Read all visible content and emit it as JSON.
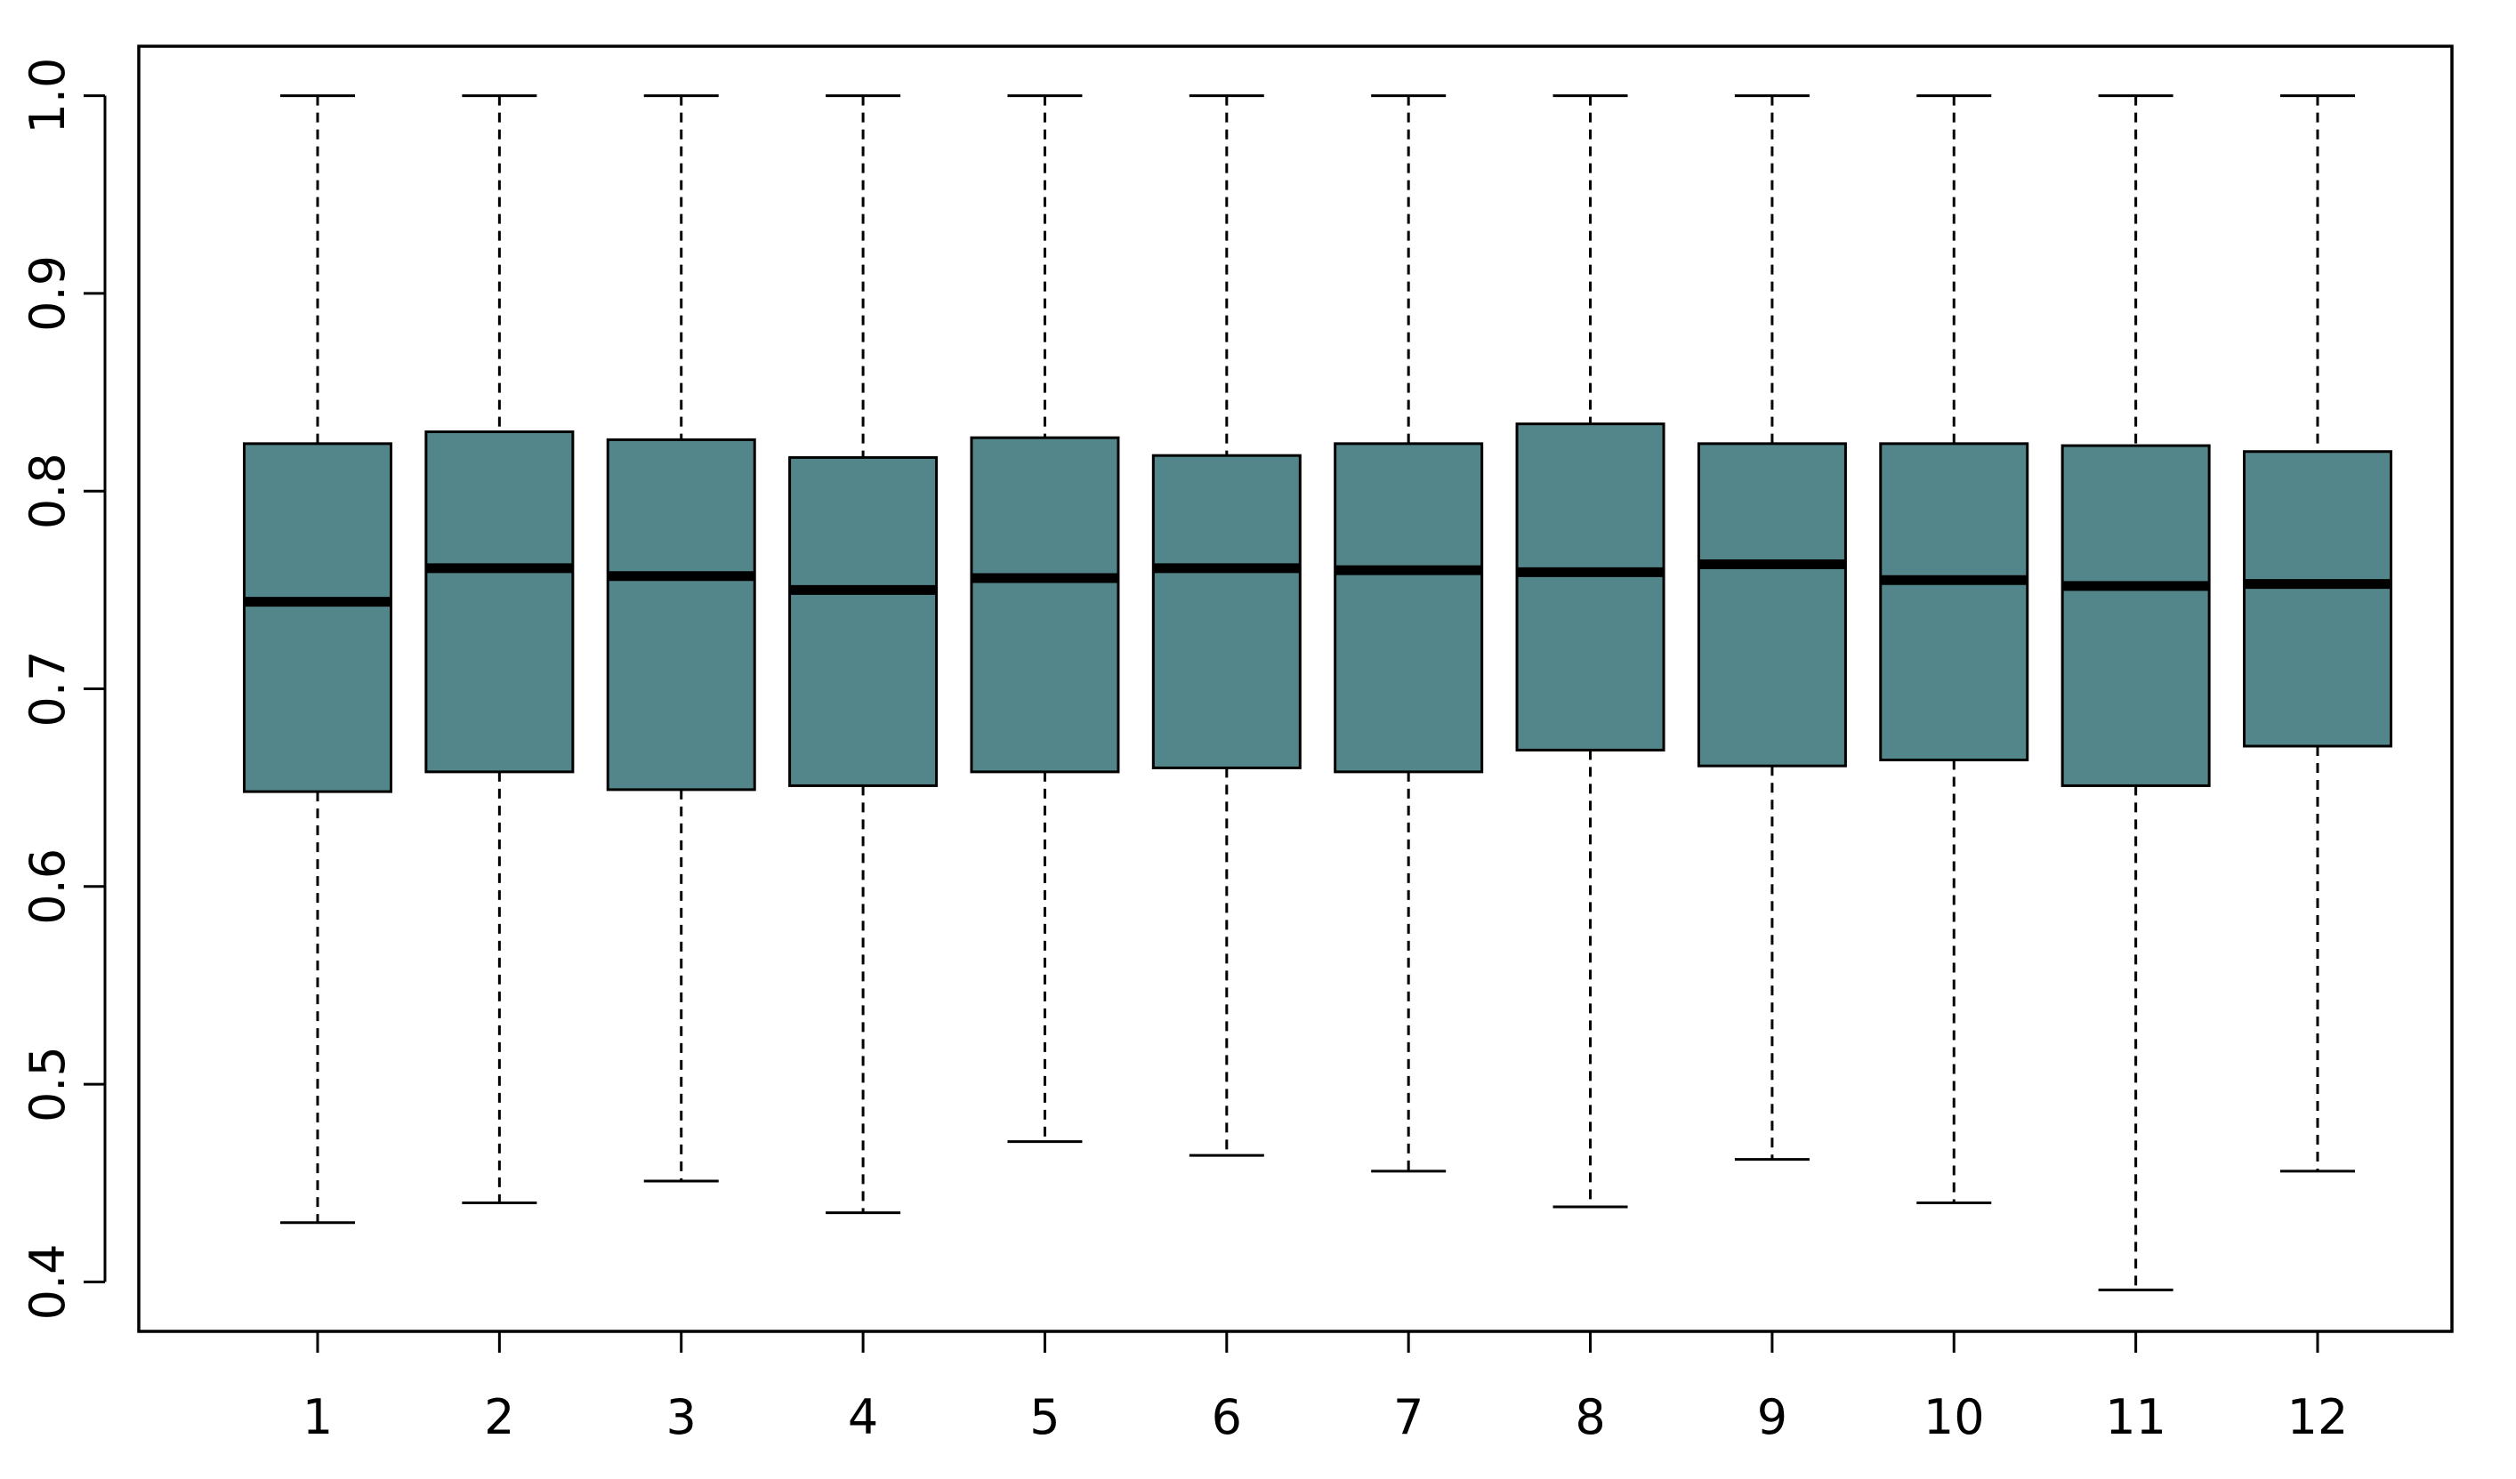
{
  "chart_data": {
    "type": "box",
    "title": "",
    "xlabel": "",
    "ylabel": "",
    "ylim": [
      0.375,
      1.025
    ],
    "y_ticks": [
      "0.4",
      "0.5",
      "0.6",
      "0.7",
      "0.8",
      "0.9",
      "1.0"
    ],
    "y_tick_values": [
      0.4,
      0.5,
      0.6,
      0.7,
      0.8,
      0.9,
      1.0
    ],
    "categories": [
      "1",
      "2",
      "3",
      "4",
      "5",
      "6",
      "7",
      "8",
      "9",
      "10",
      "11",
      "12"
    ],
    "box_color": "#53868b",
    "grid": false,
    "legend": "none",
    "boxes": [
      {
        "category": "1",
        "min": 0.43,
        "q1": 0.648,
        "median": 0.744,
        "q3": 0.824,
        "max": 1.0
      },
      {
        "category": "2",
        "min": 0.44,
        "q1": 0.658,
        "median": 0.761,
        "q3": 0.83,
        "max": 1.0
      },
      {
        "category": "3",
        "min": 0.451,
        "q1": 0.649,
        "median": 0.757,
        "q3": 0.826,
        "max": 1.0
      },
      {
        "category": "4",
        "min": 0.435,
        "q1": 0.651,
        "median": 0.75,
        "q3": 0.817,
        "max": 1.0
      },
      {
        "category": "5",
        "min": 0.471,
        "q1": 0.658,
        "median": 0.756,
        "q3": 0.827,
        "max": 1.0
      },
      {
        "category": "6",
        "min": 0.464,
        "q1": 0.66,
        "median": 0.761,
        "q3": 0.818,
        "max": 1.0
      },
      {
        "category": "7",
        "min": 0.456,
        "q1": 0.658,
        "median": 0.76,
        "q3": 0.824,
        "max": 1.0
      },
      {
        "category": "8",
        "min": 0.438,
        "q1": 0.669,
        "median": 0.759,
        "q3": 0.834,
        "max": 1.0
      },
      {
        "category": "9",
        "min": 0.462,
        "q1": 0.661,
        "median": 0.763,
        "q3": 0.824,
        "max": 1.0
      },
      {
        "category": "10",
        "min": 0.44,
        "q1": 0.664,
        "median": 0.755,
        "q3": 0.824,
        "max": 1.0
      },
      {
        "category": "11",
        "min": 0.396,
        "q1": 0.651,
        "median": 0.752,
        "q3": 0.823,
        "max": 1.0
      },
      {
        "category": "12",
        "min": 0.456,
        "q1": 0.671,
        "median": 0.753,
        "q3": 0.82,
        "max": 1.0
      }
    ]
  }
}
